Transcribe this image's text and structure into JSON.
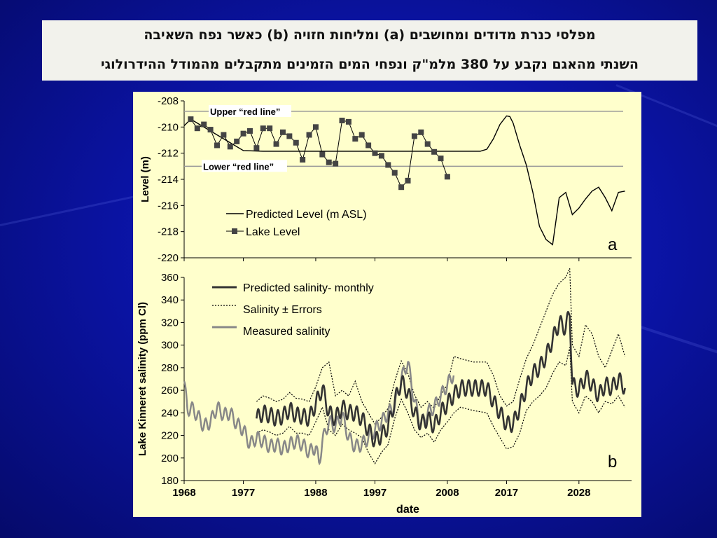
{
  "title": {
    "line1": "מפלסי כנרת מדודים ומחושבים (a) ומליחות חזויה (b) כאשר נפח השאיבה",
    "line2": "השנתי מהאגם נקבע על 380 מלמ\"ק ונפחי המים הזמינים מתקבלים מהמודל ההידרולוגי"
  },
  "colors": {
    "chart_background": "#ffffcc",
    "predicted": "#333333",
    "measured": "#888888",
    "lake_marker": "#444444",
    "red_line": "#999999"
  },
  "chart_data": [
    {
      "type": "line",
      "panel_label": "a",
      "ylabel": "Level (m)",
      "ylim": [
        -220,
        -208
      ],
      "yticks": [
        -208,
        -210,
        -212,
        -214,
        -216,
        -218,
        -220
      ],
      "xlim": [
        1968,
        2036
      ],
      "grid": false,
      "legend": "center-left",
      "annotations": [
        {
          "text": "Upper “red line”",
          "y": -208.8
        },
        {
          "text": "Lower “red line”",
          "y": -213
        }
      ],
      "series": [
        {
          "name": "Predicted Level (m ASL)",
          "style": "solid-thin",
          "x": [
            1968,
            1969,
            1970,
            1977,
            1980,
            1990,
            2000,
            2005,
            2010,
            2013,
            2014,
            2015,
            2016,
            2017,
            2017.5,
            2018,
            2019,
            2020,
            2021,
            2022,
            2023,
            2024,
            2025,
            2026,
            2027,
            2028,
            2029,
            2030,
            2031,
            2032,
            2033,
            2034,
            2035
          ],
          "values": [
            -209.9,
            -209.4,
            -209.7,
            -211.8,
            -211.85,
            -211.85,
            -211.85,
            -211.85,
            -211.85,
            -211.85,
            -211.7,
            -210.9,
            -209.8,
            -209.15,
            -209.2,
            -209.7,
            -211.4,
            -212.9,
            -215.0,
            -217.6,
            -218.6,
            -219.0,
            -215.4,
            -215.0,
            -216.7,
            -216.2,
            -215.5,
            -214.9,
            -214.6,
            -215.4,
            -216.4,
            -215.0,
            -214.9
          ]
        },
        {
          "name": "Lake Level",
          "style": "markers",
          "x": [
            1969,
            1970,
            1971,
            1972,
            1973,
            1974,
            1975,
            1976,
            1977,
            1978,
            1979,
            1980,
            1981,
            1982,
            1983,
            1984,
            1985,
            1986,
            1987,
            1988,
            1989,
            1990,
            1991,
            1992,
            1993,
            1994,
            1995,
            1996,
            1997,
            1998,
            1999,
            2000,
            2001,
            2002,
            2003,
            2004,
            2005,
            2006,
            2007,
            2008
          ],
          "values": [
            -209.4,
            -210.1,
            -209.8,
            -210.2,
            -211.4,
            -210.6,
            -211.5,
            -211.1,
            -210.5,
            -210.3,
            -211.6,
            -210.1,
            -210.1,
            -211.3,
            -210.4,
            -210.7,
            -211.2,
            -212.5,
            -210.6,
            -210.0,
            -212.1,
            -212.7,
            -212.8,
            -209.5,
            -209.6,
            -210.9,
            -210.6,
            -211.4,
            -212.0,
            -212.2,
            -212.9,
            -213.5,
            -214.6,
            -214.1,
            -210.7,
            -210.4,
            -211.3,
            -211.9,
            -212.4,
            -213.8
          ]
        }
      ],
      "reference_lines": [
        -208.8,
        -213
      ]
    },
    {
      "type": "line",
      "panel_label": "b",
      "ylabel": "Lake Kinneret salinity (ppm Cl)",
      "xlabel": "date",
      "ylim": [
        180,
        360
      ],
      "yticks": [
        180,
        200,
        220,
        240,
        260,
        280,
        300,
        320,
        340,
        360
      ],
      "xlim": [
        1968,
        2036
      ],
      "xticks": [
        1968,
        1977,
        1988,
        1997,
        2008,
        2017,
        2028
      ],
      "grid": false,
      "legend": "top-left",
      "series": [
        {
          "name": "Predicted salinity- monthly",
          "style": "solid-thick",
          "x": [
            1979,
            1980,
            1981,
            1982,
            1983,
            1984,
            1985,
            1986,
            1987,
            1988,
            1989,
            1990,
            1991,
            1992,
            1993,
            1994,
            1995,
            1996,
            1997,
            1998,
            1999,
            2000,
            2001,
            2002,
            2003,
            2004,
            2005,
            2006,
            2007,
            2008,
            2009,
            2010,
            2012,
            2014,
            2015,
            2016,
            2017,
            2018,
            2019,
            2020,
            2021,
            2022,
            2023,
            2024,
            2025,
            2026,
            2026.6,
            2027,
            2028,
            2029,
            2030,
            2031,
            2032,
            2033,
            2034,
            2035
          ],
          "values": [
            235,
            240,
            238,
            235,
            237,
            243,
            238,
            237,
            235,
            248,
            262,
            240,
            235,
            245,
            240,
            240,
            235,
            225,
            215,
            220,
            228,
            250,
            268,
            258,
            240,
            230,
            235,
            228,
            240,
            248,
            256,
            262,
            262,
            262,
            250,
            240,
            230,
            230,
            245,
            262,
            275,
            280,
            290,
            305,
            320,
            315,
            330,
            265,
            260,
            272,
            265,
            255,
            265,
            262,
            270,
            262
          ]
        },
        {
          "name": "Salinity ± Errors",
          "style": "dotted",
          "x": [
            1979,
            1980,
            1981,
            1982,
            1983,
            1984,
            1985,
            1986,
            1987,
            1988,
            1989,
            1990,
            1991,
            1992,
            1993,
            1994,
            1995,
            1996,
            1997,
            1998,
            1999,
            2000,
            2001,
            2002,
            2003,
            2004,
            2005,
            2006,
            2007,
            2008,
            2009,
            2010,
            2012,
            2014,
            2015,
            2016,
            2017,
            2018,
            2019,
            2020,
            2021,
            2022,
            2023,
            2024,
            2025,
            2026,
            2026.6,
            2027,
            2028,
            2029,
            2030,
            2031,
            2032,
            2033,
            2034,
            2035
          ],
          "values": [
            250,
            255,
            253,
            250,
            252,
            258,
            253,
            252,
            250,
            263,
            280,
            285,
            255,
            260,
            255,
            268,
            250,
            240,
            230,
            236,
            244,
            268,
            286,
            275,
            256,
            245,
            250,
            244,
            256,
            265,
            290,
            288,
            285,
            285,
            273,
            255,
            246,
            250,
            270,
            288,
            300,
            315,
            330,
            345,
            355,
            360,
            368,
            300,
            290,
            318,
            310,
            290,
            280,
            295,
            310,
            290
          ]
        },
        {
          "name": "Salinity ± Errors",
          "style": "dotted",
          "x": [
            1979,
            1980,
            1981,
            1982,
            1983,
            1984,
            1985,
            1986,
            1987,
            1988,
            1989,
            1990,
            1991,
            1992,
            1993,
            1994,
            1995,
            1996,
            1997,
            1998,
            1999,
            2000,
            2001,
            2002,
            2003,
            2004,
            2005,
            2006,
            2007,
            2008,
            2009,
            2010,
            2012,
            2014,
            2015,
            2016,
            2017,
            2018,
            2019,
            2020,
            2021,
            2022,
            2023,
            2024,
            2025,
            2026,
            2026.6,
            2027,
            2028,
            2029,
            2030,
            2031,
            2032,
            2033,
            2034,
            2035
          ],
          "values": [
            222,
            225,
            223,
            220,
            222,
            228,
            222,
            222,
            220,
            232,
            245,
            225,
            220,
            230,
            225,
            222,
            218,
            205,
            195,
            205,
            212,
            235,
            252,
            240,
            225,
            218,
            222,
            214,
            225,
            232,
            240,
            245,
            242,
            240,
            228,
            218,
            208,
            210,
            222,
            242,
            250,
            255,
            262,
            275,
            285,
            282,
            298,
            250,
            240,
            255,
            250,
            240,
            250,
            248,
            255,
            245
          ]
        },
        {
          "name": "Measured salinity",
          "style": "solid-gray",
          "x": [
            1968,
            1968.5,
            1969,
            1970,
            1971,
            1972,
            1973,
            1974,
            1975,
            1976,
            1977,
            1978,
            1979,
            1980,
            1981,
            1982,
            1983,
            1984,
            1985,
            1986,
            1987,
            1988,
            1988.5,
            1989,
            1990,
            1991,
            1992,
            1993,
            1994,
            1995,
            1996,
            1997,
            1998,
            1999,
            2000,
            2001,
            2002,
            2003,
            2004,
            2005,
            2006,
            2007,
            2008,
            2009
          ],
          "values": [
            268,
            242,
            245,
            238,
            228,
            232,
            245,
            238,
            240,
            230,
            225,
            212,
            218,
            215,
            210,
            212,
            208,
            212,
            215,
            212,
            205,
            210,
            195,
            215,
            232,
            228,
            238,
            218,
            210,
            212,
            218,
            225,
            232,
            240,
            245,
            270,
            285,
            250,
            230,
            240,
            245,
            255,
            265,
            275
          ]
        }
      ]
    }
  ]
}
